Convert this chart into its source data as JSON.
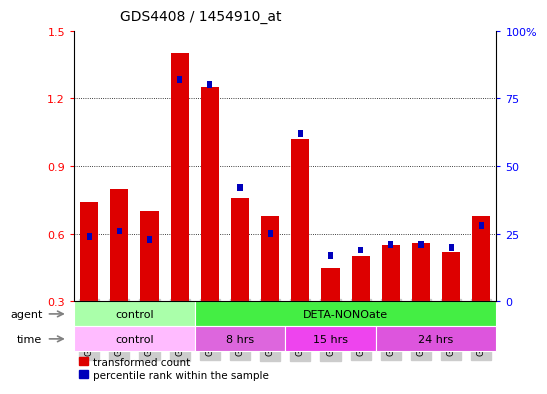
{
  "title": "GDS4408 / 1454910_at",
  "samples": [
    "GSM549080",
    "GSM549081",
    "GSM549082",
    "GSM549083",
    "GSM549084",
    "GSM549085",
    "GSM549086",
    "GSM549087",
    "GSM549088",
    "GSM549089",
    "GSM549090",
    "GSM549091",
    "GSM549092",
    "GSM549093"
  ],
  "transformed_count": [
    0.74,
    0.8,
    0.7,
    1.4,
    1.25,
    0.76,
    0.68,
    1.02,
    0.45,
    0.5,
    0.55,
    0.56,
    0.52,
    0.68
  ],
  "percentile_rank": [
    24,
    26,
    23,
    82,
    80,
    42,
    25,
    62,
    17,
    19,
    21,
    21,
    20,
    28
  ],
  "ylim_left": [
    0.3,
    1.5
  ],
  "ylim_right": [
    0,
    100
  ],
  "yticks_left": [
    0.3,
    0.6,
    0.9,
    1.2,
    1.5
  ],
  "yticks_right": [
    0,
    25,
    50,
    75,
    100
  ],
  "bar_color_red": "#dd0000",
  "bar_color_blue": "#0000bb",
  "agent_groups": [
    {
      "label": "control",
      "start": 0,
      "end": 4,
      "color": "#aaffaa"
    },
    {
      "label": "DETA-NONOate",
      "start": 4,
      "end": 14,
      "color": "#44ee44"
    }
  ],
  "time_groups": [
    {
      "label": "control",
      "start": 0,
      "end": 4,
      "color": "#ffbbff"
    },
    {
      "label": "8 hrs",
      "start": 4,
      "end": 7,
      "color": "#dd66dd"
    },
    {
      "label": "15 hrs",
      "start": 7,
      "end": 10,
      "color": "#ee44ee"
    },
    {
      "label": "24 hrs",
      "start": 10,
      "end": 14,
      "color": "#dd55dd"
    }
  ],
  "legend_red_label": "transformed count",
  "legend_blue_label": "percentile rank within the sample",
  "agent_label": "agent",
  "time_label": "time",
  "bar_width": 0.6,
  "background_color": "#ffffff",
  "tick_bg": "#cccccc",
  "grid_color": "black",
  "grid_vals": [
    0.6,
    0.9,
    1.2
  ]
}
